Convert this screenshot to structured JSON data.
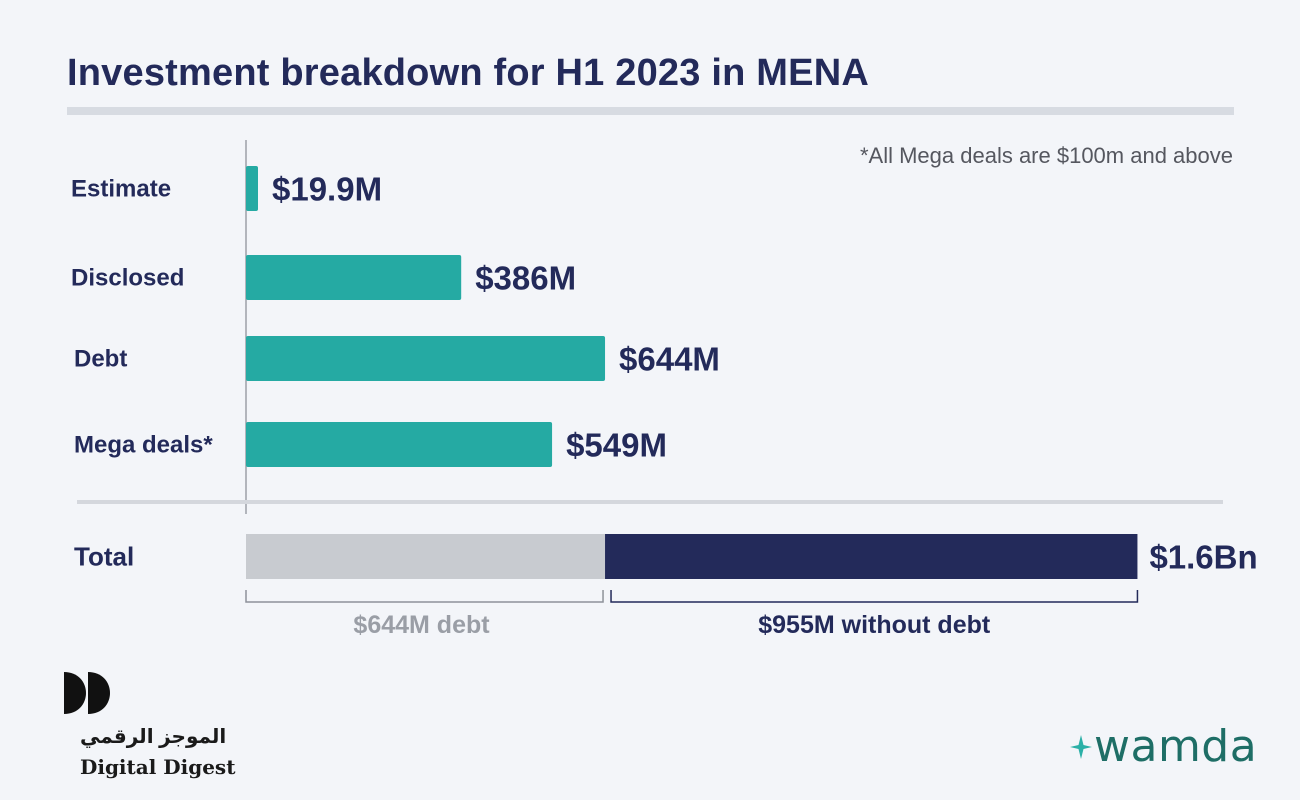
{
  "header": {
    "title": "Investment breakdown for H1 2023 in MENA",
    "footnote": "*All Mega deals are $100m and above"
  },
  "colors": {
    "bar": "#25aaa3",
    "debt_segment": "#c8cbd0",
    "non_debt_segment": "#232a5a",
    "label": "#232a5a",
    "debt_note": "#9a9ea6"
  },
  "chart_data": {
    "type": "bar",
    "orientation": "horizontal",
    "categories": [
      "Estimate",
      "Disclosed",
      "Debt",
      "Mega deals*"
    ],
    "values": [
      19.9,
      386,
      644,
      549
    ],
    "value_labels": [
      "$19.9M",
      "$386M",
      "$644M",
      "$549M"
    ],
    "unit": "$M",
    "xlim": [
      0,
      1600
    ],
    "grid": false,
    "total": {
      "label": "Total",
      "value_label": "$1.6Bn",
      "segments": [
        {
          "name": "$644M debt",
          "value": 644
        },
        {
          "name": "$955M without debt",
          "value": 955
        }
      ]
    }
  },
  "branding": {
    "digital_digest_arabic": "الموجز الرقمي",
    "digital_digest": "Digital Digest",
    "wamda": "wamda"
  }
}
